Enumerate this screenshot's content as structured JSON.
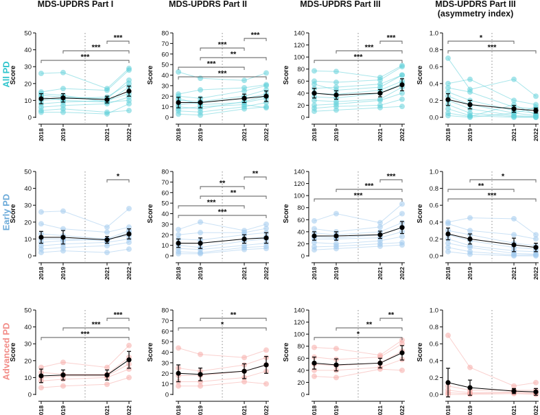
{
  "column_titles": [
    {
      "line1": "MDS-UPDRS Part I",
      "line2": ""
    },
    {
      "line1": "MDS-UPDRS Part II",
      "line2": ""
    },
    {
      "line1": "MDS-UPDRS Part III",
      "line2": ""
    },
    {
      "line1": "MDS-UPDRS Part III",
      "line2": "(asymmetry index)"
    }
  ],
  "row_labels": [
    {
      "text": "All PD",
      "color": "#2ec4cc"
    },
    {
      "text": "Early PD",
      "color": "#6aa9d8"
    },
    {
      "text": "Advanced PD",
      "color": "#f28b86"
    }
  ],
  "colors": {
    "all": "#5fd0d8",
    "early": "#9fc9ec",
    "advanced": "#f6aaa6",
    "mean": "#000000",
    "axis": "#000000",
    "divider": "#9a9a9a"
  },
  "chart_data": [
    {
      "id": "all-p1",
      "type": "scatter",
      "group": "all",
      "title": "MDS-UPDRS Part I",
      "ylabel": "Score",
      "ylim": [
        0,
        50
      ],
      "yticks": [
        0,
        10,
        20,
        30,
        40,
        50
      ],
      "x": [
        2018,
        2019,
        2021,
        2022
      ],
      "xlabels": [
        "2018",
        "2019",
        "2021",
        "2022"
      ],
      "mean": [
        11,
        11.5,
        10.5,
        15.5
      ],
      "err": [
        3,
        2.5,
        2,
        3
      ],
      "subjects": [
        [
          26,
          26.5,
          17,
          29
        ],
        [
          15,
          17,
          16,
          28
        ],
        [
          13,
          12,
          11,
          22
        ],
        [
          12,
          10,
          9,
          18
        ],
        [
          10,
          11,
          12,
          20
        ],
        [
          8,
          9,
          10,
          14
        ],
        [
          6,
          7,
          8,
          12
        ],
        [
          14,
          13,
          9,
          10
        ],
        [
          3,
          3,
          2,
          8
        ],
        [
          4,
          5,
          3,
          4
        ]
      ],
      "brackets": [
        {
          "from": 0,
          "to": 3,
          "label": "***"
        },
        {
          "from": 1,
          "to": 3,
          "label": "***"
        },
        {
          "from": 2,
          "to": 3,
          "label": "***"
        }
      ]
    },
    {
      "id": "all-p2",
      "type": "scatter",
      "group": "all",
      "title": "MDS-UPDRS Part II",
      "ylabel": "Score",
      "ylim": [
        0,
        80
      ],
      "yticks": [
        0,
        10,
        20,
        30,
        40,
        50,
        60,
        70,
        80
      ],
      "x": [
        2018,
        2019,
        2021,
        2022
      ],
      "xlabels": [
        "2018",
        "2019",
        "2021",
        "2022"
      ],
      "mean": [
        14,
        14,
        18,
        20
      ],
      "err": [
        5,
        5,
        4,
        5
      ],
      "subjects": [
        [
          43,
          37,
          35,
          42
        ],
        [
          22,
          26,
          28,
          31
        ],
        [
          20,
          18,
          25,
          30
        ],
        [
          16,
          15,
          20,
          26
        ],
        [
          12,
          14,
          18,
          22
        ],
        [
          10,
          8,
          15,
          20
        ],
        [
          6,
          5,
          10,
          14
        ],
        [
          3,
          2,
          8,
          10
        ],
        [
          18,
          12,
          14,
          18
        ],
        [
          8,
          10,
          12,
          9
        ]
      ],
      "brackets": [
        {
          "from": 0,
          "to": 2,
          "label": "***"
        },
        {
          "from": 0,
          "to": 3,
          "label": "***"
        },
        {
          "from": 1,
          "to": 2,
          "label": "***"
        },
        {
          "from": 1,
          "to": 3,
          "label": "**"
        },
        {
          "from": 2,
          "to": 3,
          "label": "***"
        }
      ]
    },
    {
      "id": "all-p3",
      "type": "scatter",
      "group": "all",
      "title": "MDS-UPDRS Part III",
      "ylabel": "Score",
      "ylim": [
        0,
        140
      ],
      "yticks": [
        0,
        20,
        40,
        60,
        80,
        100,
        120,
        140
      ],
      "x": [
        2018,
        2019,
        2021,
        2022
      ],
      "xlabels": [
        "2018",
        "2019",
        "2021",
        "2022"
      ],
      "mean": [
        40,
        37,
        40,
        54
      ],
      "err": [
        8,
        7,
        6,
        10
      ],
      "subjects": [
        [
          77,
          76,
          66,
          86
        ],
        [
          60,
          58,
          62,
          84
        ],
        [
          48,
          50,
          55,
          70
        ],
        [
          40,
          38,
          45,
          60
        ],
        [
          34,
          32,
          40,
          56
        ],
        [
          28,
          26,
          30,
          50
        ],
        [
          20,
          22,
          28,
          40
        ],
        [
          15,
          18,
          20,
          30
        ],
        [
          10,
          12,
          16,
          18
        ],
        [
          55,
          45,
          50,
          70
        ]
      ],
      "brackets": [
        {
          "from": 0,
          "to": 3,
          "label": "***"
        },
        {
          "from": 1,
          "to": 3,
          "label": "***"
        },
        {
          "from": 2,
          "to": 3,
          "label": "***"
        }
      ]
    },
    {
      "id": "all-ai",
      "type": "scatter",
      "group": "all",
      "title": "MDS-UPDRS Part III (asymmetry index)",
      "ylabel": "Score",
      "ylim": [
        0,
        1
      ],
      "yticks": [
        0,
        0.2,
        0.4,
        0.6,
        0.8,
        1.0
      ],
      "ytick_labels": [
        "0.0",
        "0.2",
        "0.4",
        "0.6",
        "0.8",
        "1.0"
      ],
      "x": [
        2018,
        2019,
        2021,
        2022
      ],
      "xlabels": [
        "2018",
        "2019",
        "2021",
        "2022"
      ],
      "mean": [
        0.21,
        0.15,
        0.1,
        0.08
      ],
      "err": [
        0.07,
        0.05,
        0.04,
        0.03
      ],
      "subjects": [
        [
          0.7,
          0.33,
          0.45,
          0.25
        ],
        [
          0.4,
          0.45,
          0.2,
          0.15
        ],
        [
          0.35,
          0.3,
          0.12,
          0.1
        ],
        [
          0.3,
          0.2,
          0.08,
          0.05
        ],
        [
          0.25,
          0.15,
          0.05,
          0.02
        ],
        [
          0.2,
          0.1,
          0.02,
          0.01
        ],
        [
          0.15,
          0.05,
          0.01,
          0.0
        ],
        [
          0.1,
          0.02,
          0.0,
          0.0
        ],
        [
          0.05,
          0.01,
          0.15,
          0.03
        ],
        [
          0.02,
          0.0,
          0.05,
          0.12
        ]
      ],
      "brackets": [
        {
          "from": 0,
          "to": 2,
          "label": "*"
        },
        {
          "from": 0,
          "to": 3,
          "label": "***"
        }
      ]
    },
    {
      "id": "early-p1",
      "type": "scatter",
      "group": "early",
      "title": "MDS-UPDRS Part I",
      "ylabel": "Score",
      "ylim": [
        0,
        50
      ],
      "yticks": [
        0,
        10,
        20,
        30,
        40,
        50
      ],
      "x": [
        2018,
        2019,
        2021,
        2022
      ],
      "xlabels": [
        "2018",
        "2019",
        "2021",
        "2022"
      ],
      "mean": [
        11,
        11,
        9.5,
        13
      ],
      "err": [
        3.5,
        4,
        2,
        3
      ],
      "subjects": [
        [
          26,
          26.5,
          17,
          28
        ],
        [
          19,
          16,
          14,
          17
        ],
        [
          13,
          12,
          10,
          15
        ],
        [
          10,
          10,
          9,
          14
        ],
        [
          8,
          9,
          10,
          12
        ],
        [
          6,
          7,
          8,
          10
        ],
        [
          4,
          5,
          6,
          8
        ],
        [
          2,
          3,
          2,
          4
        ]
      ],
      "brackets": [
        {
          "from": 2,
          "to": 3,
          "label": "*"
        }
      ]
    },
    {
      "id": "early-p2",
      "type": "scatter",
      "group": "early",
      "title": "MDS-UPDRS Part II",
      "ylabel": "Score",
      "ylim": [
        0,
        80
      ],
      "yticks": [
        0,
        10,
        20,
        30,
        40,
        50,
        60,
        70,
        80
      ],
      "x": [
        2018,
        2019,
        2021,
        2022
      ],
      "xlabels": [
        "2018",
        "2019",
        "2021",
        "2022"
      ],
      "mean": [
        12,
        12,
        16,
        17
      ],
      "err": [
        4,
        5,
        4,
        5
      ],
      "subjects": [
        [
          25,
          32,
          24,
          30
        ],
        [
          20,
          22,
          22,
          26
        ],
        [
          16,
          15,
          20,
          22
        ],
        [
          12,
          12,
          16,
          18
        ],
        [
          10,
          8,
          14,
          16
        ],
        [
          7,
          6,
          10,
          12
        ],
        [
          4,
          3,
          8,
          9
        ],
        [
          2,
          2,
          6,
          7
        ]
      ],
      "brackets": [
        {
          "from": 0,
          "to": 2,
          "label": "***"
        },
        {
          "from": 0,
          "to": 3,
          "label": "***"
        },
        {
          "from": 1,
          "to": 2,
          "label": "**"
        },
        {
          "from": 1,
          "to": 3,
          "label": "**"
        },
        {
          "from": 2,
          "to": 3,
          "label": "**"
        }
      ]
    },
    {
      "id": "early-p3",
      "type": "scatter",
      "group": "early",
      "title": "MDS-UPDRS Part III",
      "ylabel": "Score",
      "ylim": [
        0,
        140
      ],
      "yticks": [
        0,
        20,
        40,
        60,
        80,
        100,
        120,
        140
      ],
      "x": [
        2018,
        2019,
        2021,
        2022
      ],
      "xlabels": [
        "2018",
        "2019",
        "2021",
        "2022"
      ],
      "mean": [
        33,
        33,
        35,
        47
      ],
      "err": [
        7,
        7,
        6,
        10
      ],
      "subjects": [
        [
          58,
          70,
          55,
          86
        ],
        [
          45,
          40,
          48,
          70
        ],
        [
          38,
          35,
          40,
          55
        ],
        [
          32,
          30,
          35,
          48
        ],
        [
          28,
          28,
          30,
          40
        ],
        [
          22,
          20,
          25,
          32
        ],
        [
          15,
          16,
          20,
          22
        ],
        [
          10,
          12,
          16,
          18
        ]
      ],
      "brackets": [
        {
          "from": 0,
          "to": 3,
          "label": "***"
        },
        {
          "from": 1,
          "to": 3,
          "label": "***"
        },
        {
          "from": 2,
          "to": 3,
          "label": "***"
        }
      ]
    },
    {
      "id": "early-ai",
      "type": "scatter",
      "group": "early",
      "title": "MDS-UPDRS Part III (asymmetry index)",
      "ylabel": "Score",
      "ylim": [
        0,
        1
      ],
      "yticks": [
        0,
        0.2,
        0.4,
        0.6,
        0.8,
        1.0
      ],
      "ytick_labels": [
        "0.0",
        "0.2",
        "0.4",
        "0.6",
        "0.8",
        "1.0"
      ],
      "x": [
        2018,
        2019,
        2021,
        2022
      ],
      "xlabels": [
        "2018",
        "2019",
        "2021",
        "2022"
      ],
      "mean": [
        0.26,
        0.2,
        0.13,
        0.1
      ],
      "err": [
        0.07,
        0.06,
        0.08,
        0.05
      ],
      "subjects": [
        [
          0.4,
          0.45,
          0.44,
          0.25
        ],
        [
          0.38,
          0.3,
          0.25,
          0.2
        ],
        [
          0.3,
          0.25,
          0.15,
          0.12
        ],
        [
          0.25,
          0.18,
          0.1,
          0.08
        ],
        [
          0.2,
          0.12,
          0.06,
          0.05
        ],
        [
          0.15,
          0.1,
          0.03,
          0.02
        ],
        [
          0.1,
          0.05,
          0.01,
          0.01
        ],
        [
          0.05,
          0.02,
          0.0,
          0.0
        ]
      ],
      "brackets": [
        {
          "from": 0,
          "to": 2,
          "label": "**"
        },
        {
          "from": 0,
          "to": 3,
          "label": "***"
        },
        {
          "from": 1,
          "to": 3,
          "label": "*"
        }
      ]
    },
    {
      "id": "adv-p1",
      "type": "scatter",
      "group": "advanced",
      "title": "MDS-UPDRS Part I",
      "ylabel": "Score",
      "ylim": [
        0,
        50
      ],
      "yticks": [
        0,
        10,
        20,
        30,
        40,
        50
      ],
      "x": [
        2018,
        2019,
        2021,
        2022
      ],
      "xlabels": [
        "2018",
        "2019",
        "2021",
        "2022"
      ],
      "mean": [
        11,
        11.5,
        11.5,
        20.5
      ],
      "err": [
        4,
        3,
        3,
        5
      ],
      "subjects": [
        [
          16,
          19,
          16,
          29
        ],
        [
          13,
          12,
          12,
          22
        ],
        [
          10,
          11,
          11,
          18
        ],
        [
          8,
          9,
          10,
          15
        ],
        [
          4,
          5,
          6,
          10
        ]
      ],
      "brackets": [
        {
          "from": 0,
          "to": 3,
          "label": "***"
        },
        {
          "from": 1,
          "to": 3,
          "label": "***"
        },
        {
          "from": 2,
          "to": 3,
          "label": "***"
        }
      ]
    },
    {
      "id": "adv-p2",
      "type": "scatter",
      "group": "advanced",
      "title": "MDS-UPDRS Part II",
      "ylabel": "Score",
      "ylim": [
        0,
        80
      ],
      "yticks": [
        0,
        10,
        20,
        30,
        40,
        50,
        60,
        70,
        80
      ],
      "x": [
        2018,
        2019,
        2021,
        2022
      ],
      "xlabels": [
        "2018",
        "2019",
        "2021",
        "2022"
      ],
      "mean": [
        20,
        19,
        22,
        28
      ],
      "err": [
        8,
        6,
        7,
        8
      ],
      "subjects": [
        [
          44,
          38,
          35,
          42
        ],
        [
          25,
          22,
          28,
          35
        ],
        [
          18,
          18,
          22,
          28
        ],
        [
          12,
          12,
          16,
          22
        ],
        [
          8,
          8,
          12,
          10
        ]
      ],
      "brackets": [
        {
          "from": 0,
          "to": 3,
          "label": "*"
        },
        {
          "from": 1,
          "to": 3,
          "label": "**"
        }
      ]
    },
    {
      "id": "adv-p3",
      "type": "scatter",
      "group": "advanced",
      "title": "MDS-UPDRS Part III",
      "ylabel": "Score",
      "ylim": [
        0,
        140
      ],
      "yticks": [
        0,
        20,
        40,
        60,
        80,
        100,
        120,
        140
      ],
      "x": [
        2018,
        2019,
        2021,
        2022
      ],
      "xlabels": [
        "2018",
        "2019",
        "2021",
        "2022"
      ],
      "mean": [
        52,
        49,
        52,
        69
      ],
      "err": [
        10,
        10,
        8,
        12
      ],
      "subjects": [
        [
          78,
          76,
          65,
          90
        ],
        [
          62,
          58,
          62,
          84
        ],
        [
          50,
          48,
          52,
          72
        ],
        [
          40,
          40,
          45,
          58
        ],
        [
          30,
          28,
          42,
          40
        ]
      ],
      "brackets": [
        {
          "from": 0,
          "to": 3,
          "label": "*"
        },
        {
          "from": 1,
          "to": 3,
          "label": "**"
        },
        {
          "from": 2,
          "to": 3,
          "label": "**"
        }
      ]
    },
    {
      "id": "adv-ai",
      "type": "scatter",
      "group": "advanced",
      "title": "MDS-UPDRS Part III (asymmetry index)",
      "ylabel": "Score",
      "ylim": [
        0,
        1
      ],
      "yticks": [
        0,
        0.2,
        0.4,
        0.6,
        0.8,
        1.0
      ],
      "ytick_labels": [
        "0.0",
        "0.2",
        "0.4",
        "0.6",
        "0.8",
        "1.0"
      ],
      "x": [
        2018,
        2019,
        2021,
        2022
      ],
      "xlabels": [
        "2018",
        "2019",
        "2021",
        "2022"
      ],
      "mean": [
        0.14,
        0.08,
        0.04,
        0.03
      ],
      "err": [
        0.17,
        0.09,
        0.03,
        0.04
      ],
      "subjects": [
        [
          0.7,
          0.32,
          0.1,
          0.14
        ],
        [
          0.1,
          0.05,
          0.05,
          0.05
        ],
        [
          0.05,
          0.02,
          0.03,
          0.02
        ],
        [
          0.02,
          0.01,
          0.02,
          0.01
        ],
        [
          0.0,
          0.0,
          0.01,
          0.0
        ]
      ],
      "brackets": []
    }
  ]
}
